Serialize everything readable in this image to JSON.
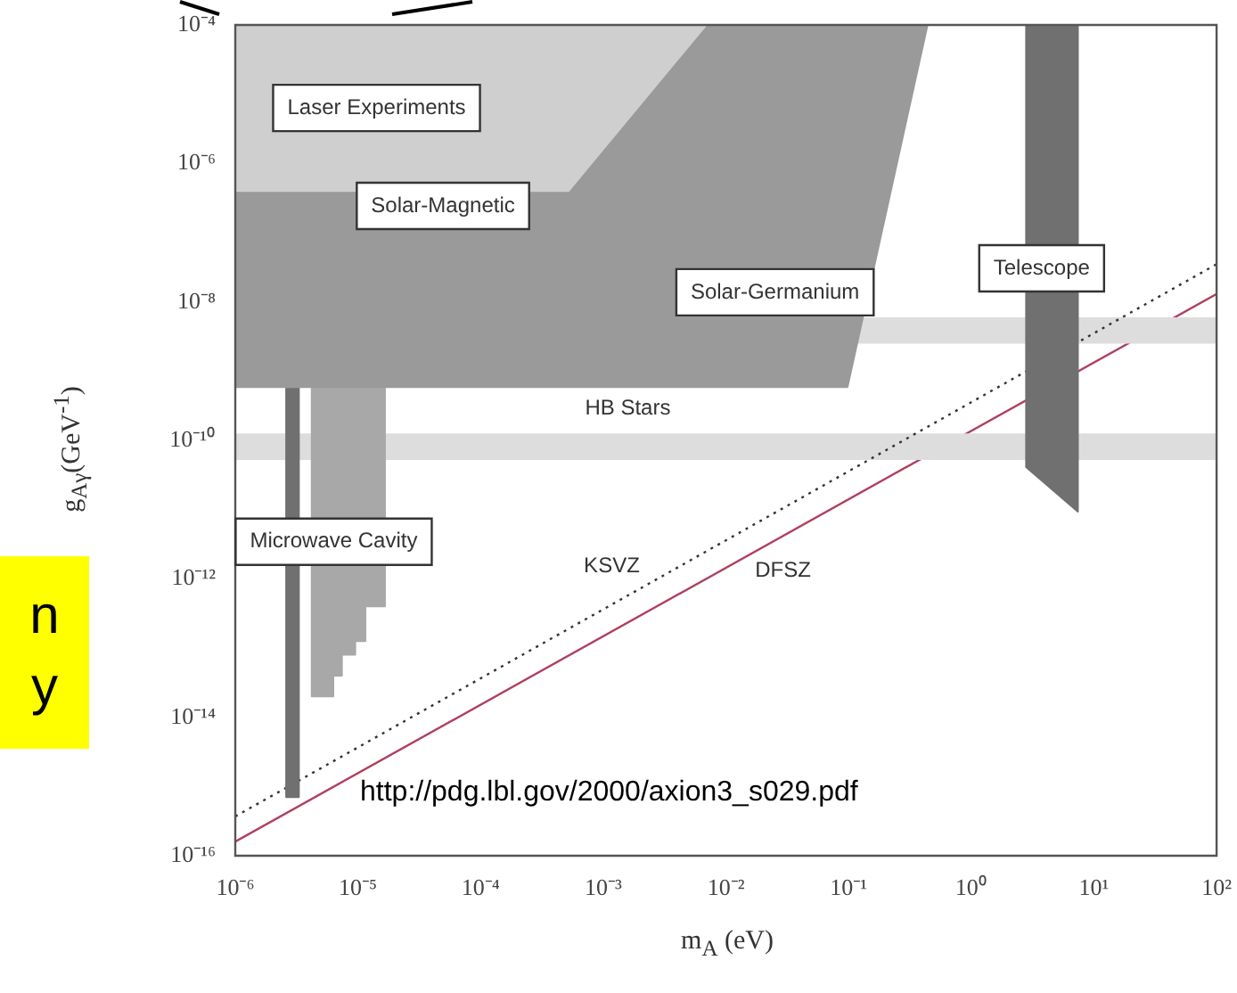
{
  "chart_data": {
    "type": "area",
    "xlabel": "m$_{A}$ (eV)",
    "ylabel": "g$_{Aγ}$(GeV$^{-1}$)",
    "log": "xy",
    "grid": false,
    "legend": false,
    "xlim": [
      1e-06,
      100
    ],
    "ylim": [
      1e-16,
      0.0001
    ],
    "xticks": [
      {
        "value": 1e-06,
        "label": "10⁻⁶"
      },
      {
        "value": 1e-05,
        "label": "10⁻⁵"
      },
      {
        "value": 0.0001,
        "label": "10⁻⁴"
      },
      {
        "value": 0.001,
        "label": "10⁻³"
      },
      {
        "value": 0.01,
        "label": "10⁻²"
      },
      {
        "value": 0.1,
        "label": "10⁻¹"
      },
      {
        "value": 1,
        "label": "10⁰"
      },
      {
        "value": 10,
        "label": "10¹"
      },
      {
        "value": 100,
        "label": "10²"
      }
    ],
    "yticks": [
      {
        "value": 1e-16,
        "label": "10⁻¹⁶"
      },
      {
        "value": 1e-14,
        "label": "10⁻¹⁴"
      },
      {
        "value": 1e-12,
        "label": "10⁻¹²"
      },
      {
        "value": 1e-10,
        "label": "10⁻¹⁰"
      },
      {
        "value": 1e-08,
        "label": "10⁻⁸"
      },
      {
        "value": 1e-06,
        "label": "10⁻⁶"
      },
      {
        "value": 0.0001,
        "label": "10⁻⁴"
      }
    ],
    "series": [
      {
        "name": "Laser Experiments",
        "color": "#cfcfcf",
        "x": [
          1e-06,
          0.0069,
          0.00052,
          1e-06,
          1e-06
        ],
        "values": [
          0.0001,
          0.0001,
          4e-07,
          4e-07,
          0.0001
        ]
      },
      {
        "name": "Solar-Magnetic",
        "color": "#9a9a9a",
        "x": [
          1e-06,
          0.00052,
          0.0069,
          0.44,
          0.098,
          1e-06,
          1e-06
        ],
        "values": [
          4e-07,
          4e-07,
          0.0001,
          0.0001,
          5.9e-10,
          5.9e-10,
          4e-07
        ]
      },
      {
        "color": "#707070",
        "x": [
          2.6e-06,
          3.3e-06,
          3.3e-06,
          2.6e-06,
          2.6e-06
        ],
        "values": [
          5.9e-10,
          5.9e-10,
          7e-16,
          7e-16,
          5.9e-10
        ]
      },
      {
        "name": "Microwave Cavity",
        "color": "#a8a8a8",
        "x": [
          4.2e-06,
          1.66e-05,
          1.66e-05,
          1.15e-05,
          1.15e-05,
          9.5e-06,
          9.5e-06,
          7.4e-06,
          7.4e-06,
          6.3e-06,
          6.3e-06,
          4.2e-06,
          4.2e-06
        ],
        "values": [
          5.9e-10,
          5.9e-10,
          4e-13,
          4e-13,
          1.26e-13,
          1.26e-13,
          8e-14,
          8e-14,
          4e-14,
          4e-14,
          2e-14,
          2e-14,
          5.9e-10
        ]
      },
      {
        "name": "Telescope",
        "color": "#707070",
        "x": [
          2.8,
          7.4,
          7.4,
          2.8,
          2.8
        ],
        "values": [
          0.0001,
          0.0001,
          9.3e-12,
          4.1e-11,
          0.0001
        ]
      },
      {
        "type": "line",
        "name": "KSVZ",
        "color": "#333333",
        "line_style": "dotted",
        "x": [
          1e-06,
          100
        ],
        "values": [
          3.7e-16,
          3.5e-08
        ]
      },
      {
        "type": "line",
        "name": "DFSZ",
        "color": "#b04060",
        "line_style": "solid",
        "x": [
          1e-06,
          100
        ],
        "values": [
          1.6e-16,
          1.3e-08
        ]
      }
    ],
    "bands": [
      {
        "axis": "y",
        "from": 2.5e-09,
        "to": 6e-09,
        "color": "#dddddd",
        "label": "Solar-Germanium"
      },
      {
        "axis": "y",
        "from": 5.2e-11,
        "to": 1.26e-10,
        "color": "#dddddd",
        "label": "HB Stars"
      }
    ],
    "annotations": [
      "http://pdg.lbl.gov/2000/axion3_s029.pdf",
      "n",
      "y"
    ]
  }
}
